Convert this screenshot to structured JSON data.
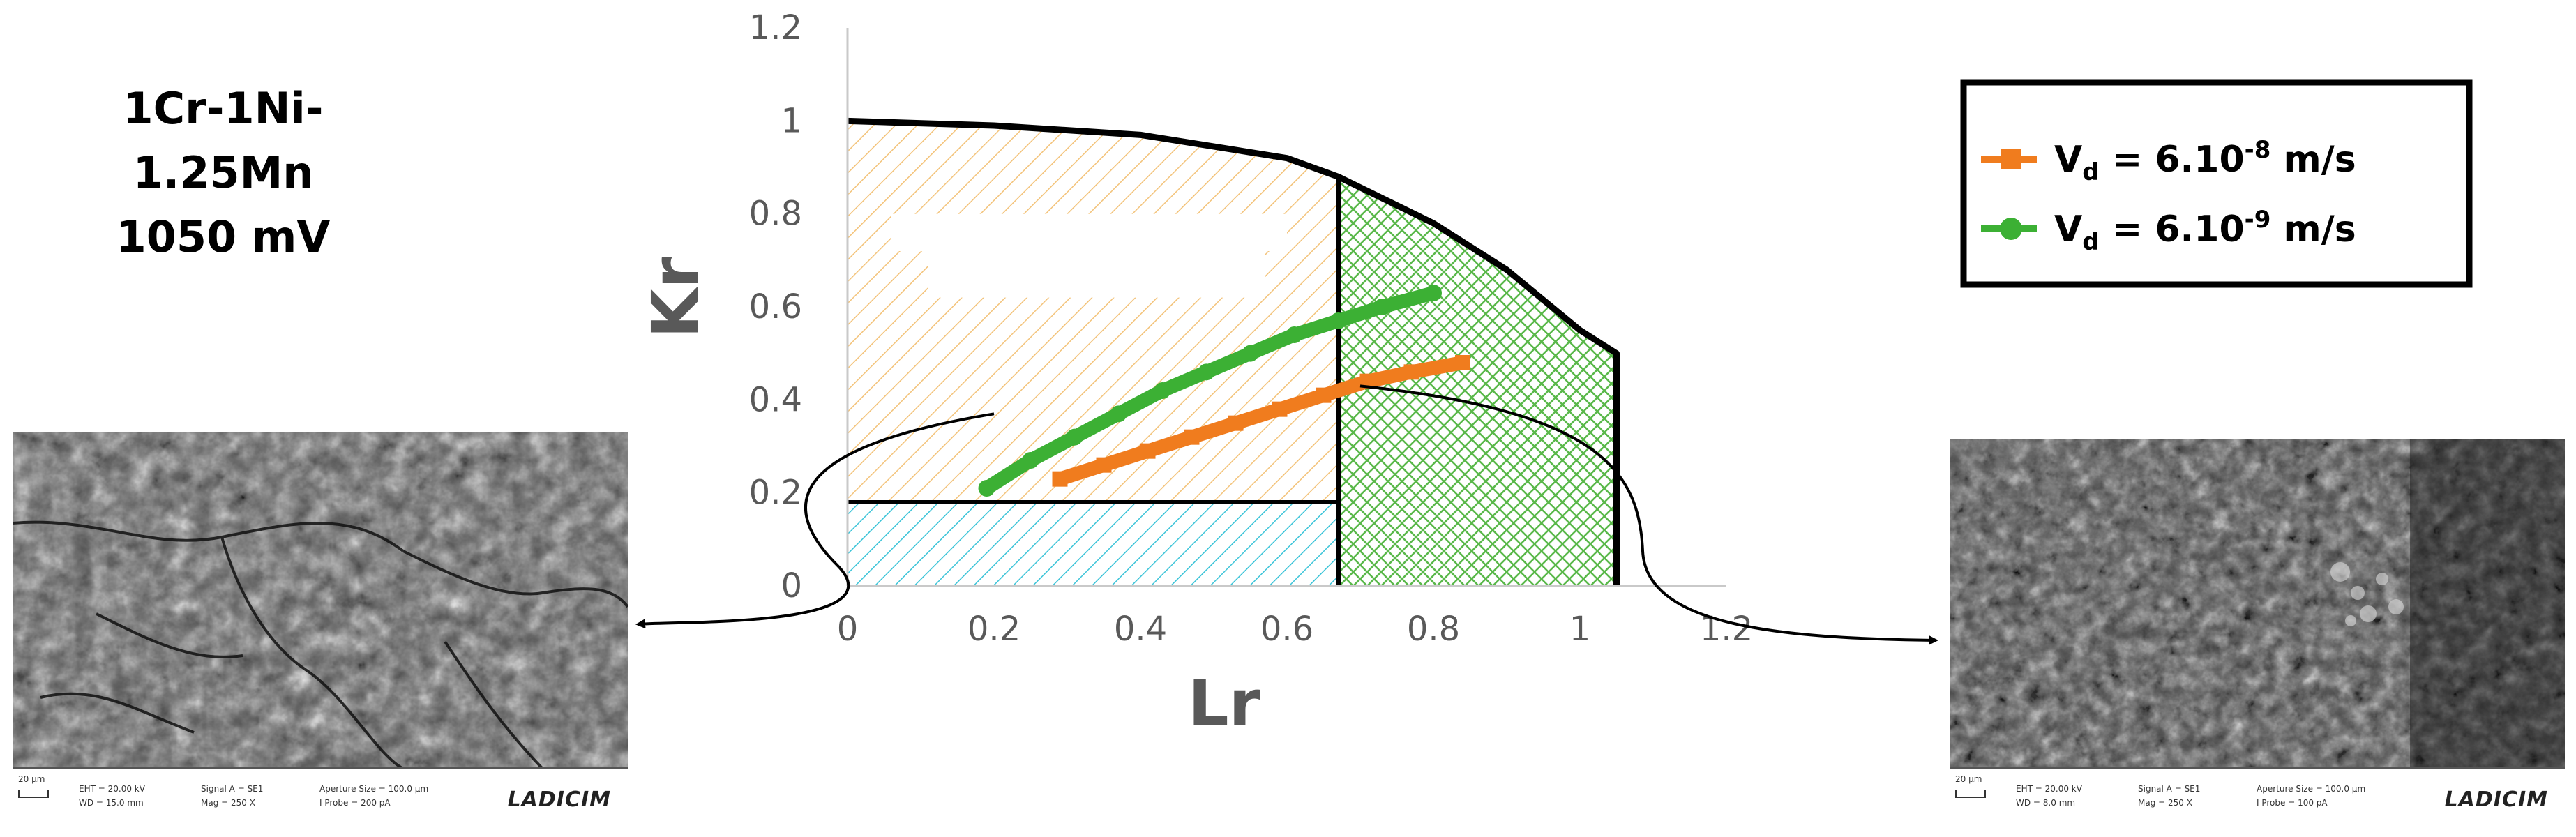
{
  "alloy_label": {
    "line1": "1Cr-1Ni-1.25Mn",
    "line2": "1050 mV"
  },
  "chart_data": {
    "type": "scatter",
    "xlabel": "Lr",
    "ylabel": "Kr",
    "xlim": [
      0,
      1.2
    ],
    "ylim": [
      0,
      1.2
    ],
    "xticks": [
      "0",
      "0.2",
      "0.4",
      "0.6",
      "0.8",
      "1",
      "1.2"
    ],
    "yticks": [
      "0",
      "0.2",
      "0.4",
      "0.6",
      "0.8",
      "1",
      "1.2"
    ],
    "grid": false,
    "legend_position": "top-right",
    "assessment_curve": {
      "x": [
        0,
        0.2,
        0.4,
        0.6,
        0.67,
        0.8,
        0.9,
        1.0,
        1.05,
        1.05
      ],
      "y": [
        1.0,
        0.99,
        0.97,
        0.92,
        0.88,
        0.78,
        0.68,
        0.55,
        0.5,
        0
      ]
    },
    "lr_cutoff": 0.67,
    "kr_threshold": 0.18,
    "regions": [
      {
        "fill": "#f3c37a",
        "pattern": "diagonal-hatch"
      },
      {
        "fill": "#5ab84a",
        "pattern": "cross-hatch"
      },
      {
        "fill": "#3cc4d8",
        "pattern": "diagonal-hatch"
      }
    ],
    "series": [
      {
        "name": "V_d = 6.10^-8 m/s",
        "legend_base": "V",
        "legend_sub": "d",
        "legend_eq": " = 6.10",
        "legend_sup": "-8",
        "legend_unit": " m/s",
        "color": "#f07c1e",
        "marker": "square",
        "x": [
          0.29,
          0.35,
          0.41,
          0.47,
          0.53,
          0.59,
          0.65,
          0.71,
          0.77,
          0.84
        ],
        "y": [
          0.23,
          0.26,
          0.29,
          0.32,
          0.35,
          0.38,
          0.41,
          0.44,
          0.46,
          0.48
        ]
      },
      {
        "name": "V_d = 6.10^-9 m/s",
        "legend_base": "V",
        "legend_sub": "d",
        "legend_eq": " = 6.10",
        "legend_sup": "-9",
        "legend_unit": " m/s",
        "color": "#3cb034",
        "marker": "circle",
        "x": [
          0.19,
          0.25,
          0.31,
          0.37,
          0.43,
          0.49,
          0.55,
          0.61,
          0.67,
          0.73,
          0.8
        ],
        "y": [
          0.21,
          0.27,
          0.32,
          0.37,
          0.42,
          0.46,
          0.5,
          0.54,
          0.57,
          0.6,
          0.63
        ]
      }
    ]
  },
  "sem_images": {
    "left": {
      "scale_bar": "20 µm",
      "eht": "EHT = 20.00 kV",
      "wd": "WD = 15.0 mm",
      "signal": "Signal A = SE1",
      "mag": "Mag = 250 X",
      "aperture": "Aperture Size = 100.0 µm",
      "probe": "I Probe = 200 pA",
      "logo": "LADICIM"
    },
    "right": {
      "scale_bar": "20 µm",
      "eht": "EHT = 20.00 kV",
      "wd": "WD = 8.0 mm",
      "signal": "Signal A = SE1",
      "mag": "Mag = 250 X",
      "aperture": "Aperture Size = 100.0 µm",
      "probe": "I Probe = 100 pA",
      "logo": "LADICIM"
    }
  }
}
